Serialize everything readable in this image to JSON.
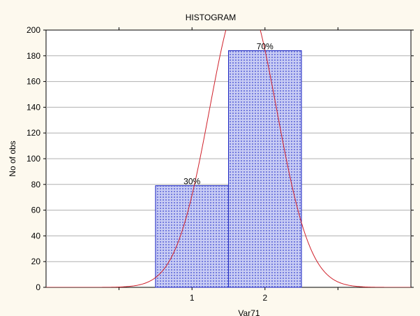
{
  "chart_data": {
    "type": "bar",
    "title": "HISTOGRAM",
    "xlabel": "Var71",
    "ylabel": "No of obs",
    "categories": [
      "1",
      "2"
    ],
    "values": [
      79,
      184
    ],
    "data_labels": [
      "30%",
      "70%"
    ],
    "xlim": [
      -1,
      4
    ],
    "ylim": [
      0,
      200
    ],
    "yticks": [
      0,
      20,
      40,
      60,
      80,
      100,
      120,
      140,
      160,
      180,
      200
    ],
    "grid": true,
    "normal_curve": {
      "mean": 1.7,
      "sd": 0.46,
      "n": 263,
      "bin_width": 1,
      "color": "#d0202a"
    },
    "colors": {
      "bar_fill": "#c8ccf4",
      "bar_pattern": "#5a64d8",
      "bar_edge": "#1a24c0",
      "grid": "#b0b0b0",
      "background": "#fdf9ee",
      "plot_background": "#ffffff"
    }
  }
}
